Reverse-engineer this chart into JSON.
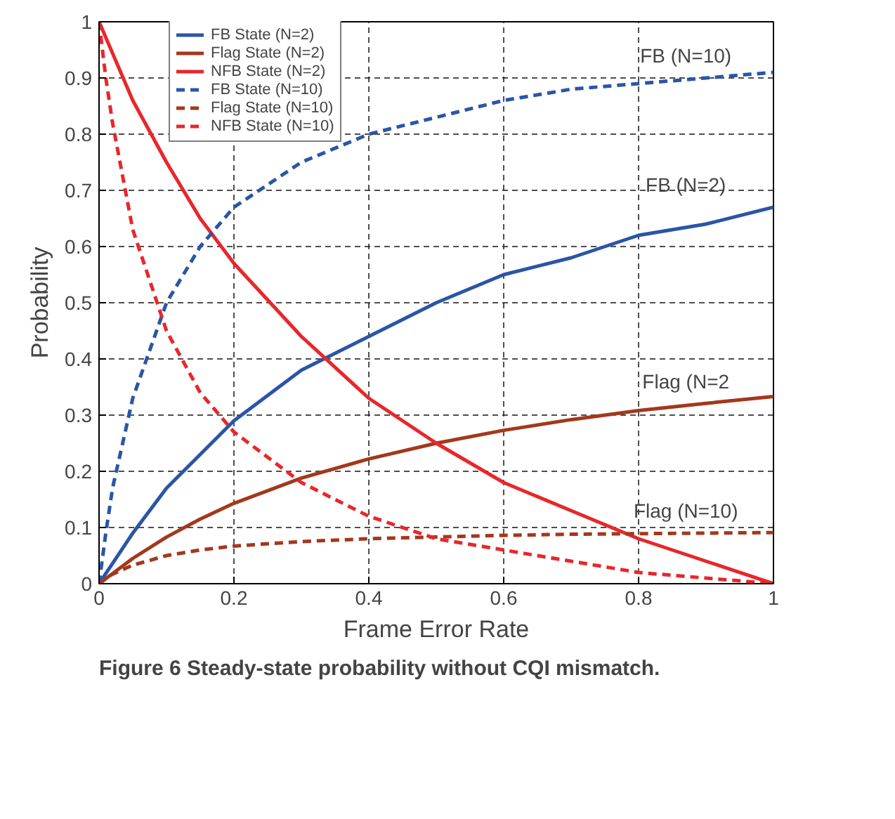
{
  "chart_data": {
    "type": "line",
    "xlabel": "Frame Error Rate",
    "ylabel": "Probability",
    "xlim": [
      0,
      1
    ],
    "ylim": [
      0,
      1
    ],
    "xticks": [
      0,
      0.2,
      0.4,
      0.6,
      0.8,
      1
    ],
    "yticks": [
      0,
      0.1,
      0.2,
      0.3,
      0.4,
      0.5,
      0.6,
      0.7,
      0.8,
      0.9,
      1
    ],
    "grid": true,
    "legend": "top left",
    "marker": "none",
    "series": [
      {
        "name": "FB State (N=2)",
        "color": "#2b55a6",
        "line_style": "solid",
        "x": [
          0,
          0.05,
          0.1,
          0.15,
          0.2,
          0.3,
          0.4,
          0.5,
          0.6,
          0.7,
          0.8,
          0.9,
          1
        ],
        "values": [
          0,
          0.09,
          0.17,
          0.23,
          0.29,
          0.38,
          0.44,
          0.5,
          0.55,
          0.58,
          0.62,
          0.64,
          0.67
        ]
      },
      {
        "name": "Flag State (N=2)",
        "color": "#a3381c",
        "line_style": "solid",
        "x": [
          0,
          0.05,
          0.1,
          0.15,
          0.2,
          0.3,
          0.4,
          0.5,
          0.6,
          0.7,
          0.8,
          0.9,
          1
        ],
        "values": [
          0,
          0.045,
          0.083,
          0.115,
          0.143,
          0.188,
          0.222,
          0.25,
          0.273,
          0.292,
          0.308,
          0.321,
          0.333
        ]
      },
      {
        "name": "NFB State (N=2)",
        "color": "#e8272b",
        "line_style": "solid",
        "x": [
          0,
          0.05,
          0.1,
          0.15,
          0.2,
          0.3,
          0.4,
          0.5,
          0.6,
          0.7,
          0.8,
          0.9,
          1
        ],
        "values": [
          1,
          0.86,
          0.75,
          0.65,
          0.57,
          0.44,
          0.33,
          0.25,
          0.18,
          0.13,
          0.08,
          0.04,
          0
        ]
      },
      {
        "name": "FB State (N=10)",
        "color": "#2b55a6",
        "line_style": "dashed",
        "x": [
          0,
          0.01,
          0.02,
          0.05,
          0.1,
          0.15,
          0.2,
          0.3,
          0.4,
          0.5,
          0.6,
          0.7,
          0.8,
          0.9,
          1
        ],
        "values": [
          0,
          0.09,
          0.17,
          0.33,
          0.5,
          0.6,
          0.67,
          0.75,
          0.8,
          0.83,
          0.86,
          0.88,
          0.89,
          0.9,
          0.91
        ]
      },
      {
        "name": "Flag State (N=10)",
        "color": "#a3381c",
        "line_style": "dashed",
        "x": [
          0,
          0.01,
          0.02,
          0.05,
          0.1,
          0.15,
          0.2,
          0.3,
          0.4,
          0.5,
          0.6,
          0.7,
          0.8,
          0.9,
          1
        ],
        "values": [
          0,
          0.009,
          0.017,
          0.033,
          0.05,
          0.06,
          0.067,
          0.075,
          0.08,
          0.083,
          0.086,
          0.088,
          0.089,
          0.09,
          0.091
        ]
      },
      {
        "name": "NFB State (N=10)",
        "color": "#e8272b",
        "line_style": "dashed",
        "x": [
          0,
          0.01,
          0.02,
          0.05,
          0.1,
          0.15,
          0.2,
          0.3,
          0.4,
          0.5,
          0.6,
          0.7,
          0.8,
          0.9,
          1
        ],
        "values": [
          1,
          0.9,
          0.82,
          0.63,
          0.45,
          0.34,
          0.27,
          0.18,
          0.12,
          0.08,
          0.06,
          0.04,
          0.02,
          0.01,
          0
        ]
      }
    ],
    "annotations": [
      "FB (N=10)",
      "FB (N=2)",
      "Flag (N=2",
      "Flag (N=10)",
      "Figure 6 Steady-state probability without CQI mismatch."
    ]
  }
}
